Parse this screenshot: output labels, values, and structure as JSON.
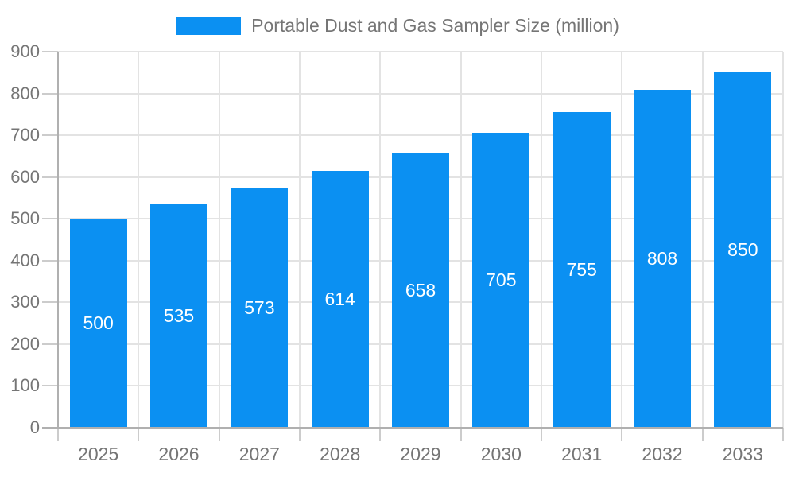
{
  "legend": {
    "label": "Portable Dust and Gas Sampler Size (million)"
  },
  "chart_data": {
    "type": "bar",
    "title": "Portable Dust and Gas Sampler Size (million)",
    "categories": [
      "2025",
      "2026",
      "2027",
      "2028",
      "2029",
      "2030",
      "2031",
      "2032",
      "2033"
    ],
    "values": [
      500,
      535,
      573,
      614,
      658,
      705,
      755,
      808,
      850
    ],
    "value_labels": [
      "500",
      "535",
      "573",
      "614",
      "658",
      "705",
      "755",
      "808",
      "850"
    ],
    "xlabel": "",
    "ylabel": "",
    "ylim": [
      0,
      900
    ],
    "yticks": [
      0,
      100,
      200,
      300,
      400,
      500,
      600,
      700,
      800,
      900
    ],
    "grid": true,
    "legend_position": "top",
    "colors": {
      "bar": "#0b90f2",
      "value_label": "#ffffff",
      "axis_line": "#b0b0b0",
      "gridline": "#e3e3e3",
      "tick": "#cccccc",
      "text": "#757575",
      "background": "#ffffff"
    }
  }
}
